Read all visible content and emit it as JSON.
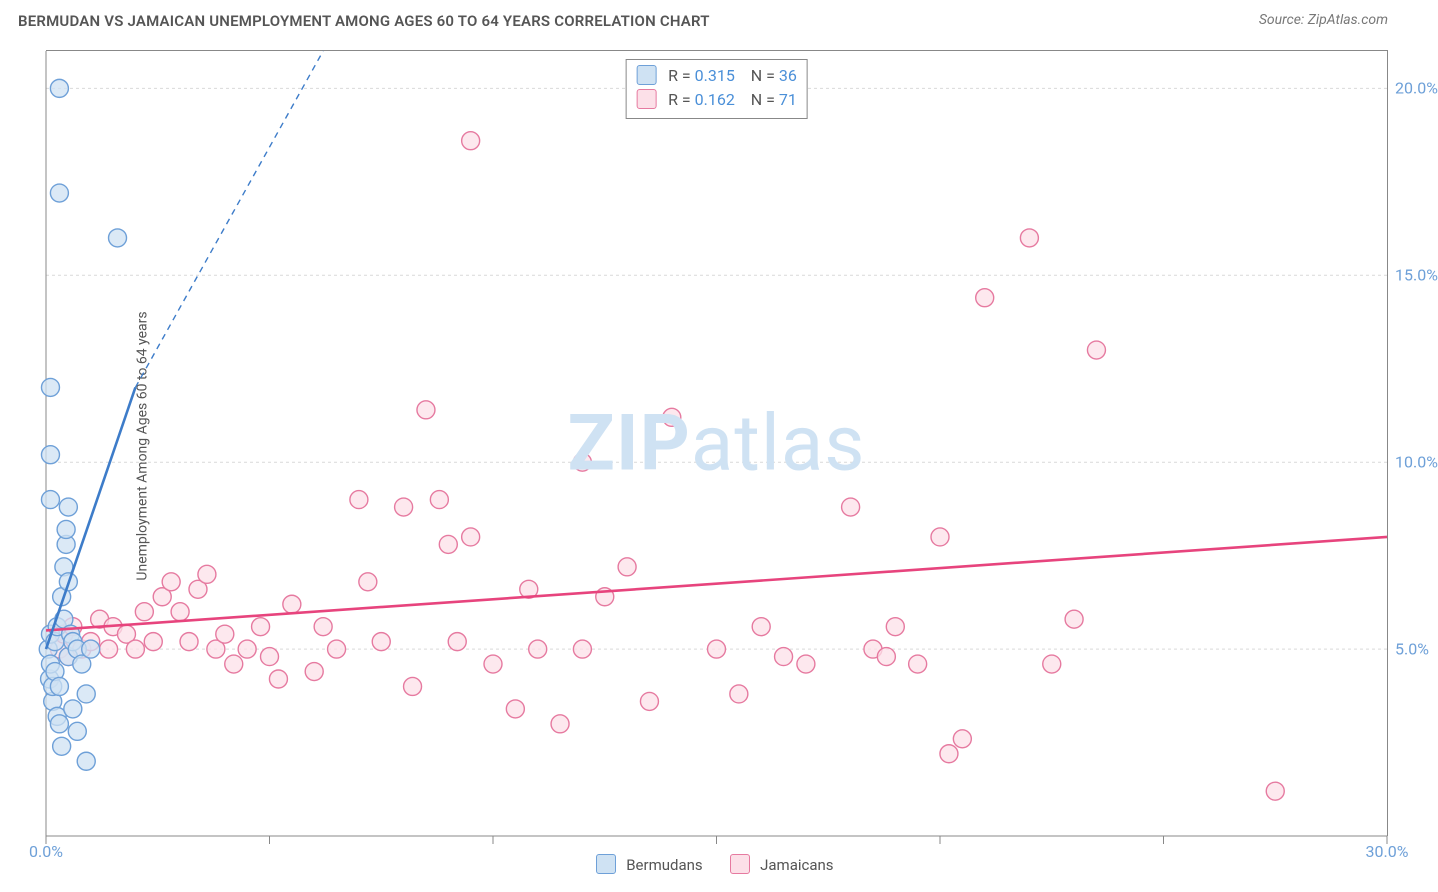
{
  "header": {
    "title": "BERMUDAN VS JAMAICAN UNEMPLOYMENT AMONG AGES 60 TO 64 YEARS CORRELATION CHART",
    "source": "Source: ZipAtlas.com"
  },
  "ylabel": "Unemployment Among Ages 60 to 64 years",
  "watermark": {
    "bold": "ZIP",
    "light": "atlas",
    "color": "#cfe2f3"
  },
  "chart": {
    "type": "scatter",
    "xlim": [
      0,
      30
    ],
    "ylim": [
      0,
      21
    ],
    "yticks": [
      {
        "v": 5,
        "label": "5.0%"
      },
      {
        "v": 10,
        "label": "10.0%"
      },
      {
        "v": 15,
        "label": "15.0%"
      },
      {
        "v": 20,
        "label": "20.0%"
      }
    ],
    "xticks": [
      {
        "v": 0,
        "label": "0.0%"
      },
      {
        "v": 5,
        "label": ""
      },
      {
        "v": 10,
        "label": ""
      },
      {
        "v": 15,
        "label": ""
      },
      {
        "v": 20,
        "label": ""
      },
      {
        "v": 25,
        "label": ""
      },
      {
        "v": 30,
        "label": "30.0%"
      }
    ],
    "grid_color": "#d9d9d9",
    "axis_color": "#888888",
    "tick_label_color": "#6ea0d8",
    "marker_radius": 9,
    "marker_stroke_width": 1.4,
    "trend_line_width": 2.6,
    "trend_dash_width": 1.4,
    "background_color": "#ffffff"
  },
  "series": {
    "bermudans": {
      "label": "Bermudans",
      "fill": "#cfe2f3",
      "stroke": "#6ea0d8",
      "line_color": "#3d7cc9",
      "R": "0.315",
      "N": "36",
      "trend": {
        "x1": 0,
        "y1": 5.0,
        "x2": 2.0,
        "y2": 12.0
      },
      "trend_ext": {
        "x1": 2.0,
        "y1": 12.0,
        "x2": 6.2,
        "y2": 21.0
      },
      "points": [
        [
          0.05,
          5.0
        ],
        [
          0.08,
          4.2
        ],
        [
          0.1,
          5.4
        ],
        [
          0.1,
          4.6
        ],
        [
          0.15,
          3.6
        ],
        [
          0.15,
          4.0
        ],
        [
          0.2,
          5.2
        ],
        [
          0.2,
          4.4
        ],
        [
          0.25,
          3.2
        ],
        [
          0.25,
          5.6
        ],
        [
          0.3,
          4.0
        ],
        [
          0.3,
          3.0
        ],
        [
          0.35,
          2.4
        ],
        [
          0.35,
          6.4
        ],
        [
          0.4,
          5.8
        ],
        [
          0.4,
          7.2
        ],
        [
          0.45,
          7.8
        ],
        [
          0.45,
          8.2
        ],
        [
          0.5,
          6.8
        ],
        [
          0.5,
          4.8
        ],
        [
          0.55,
          5.4
        ],
        [
          0.6,
          5.2
        ],
        [
          0.6,
          3.4
        ],
        [
          0.7,
          2.8
        ],
        [
          0.7,
          5.0
        ],
        [
          0.8,
          4.6
        ],
        [
          0.9,
          3.8
        ],
        [
          0.9,
          2.0
        ],
        [
          1.0,
          5.0
        ],
        [
          0.1,
          9.0
        ],
        [
          0.1,
          10.2
        ],
        [
          0.1,
          12.0
        ],
        [
          0.3,
          20.0
        ],
        [
          0.3,
          17.2
        ],
        [
          1.6,
          16.0
        ],
        [
          0.5,
          8.8
        ]
      ]
    },
    "jamaicans": {
      "label": "Jamaicans",
      "fill": "#fce0e8",
      "stroke": "#e67aa0",
      "line_color": "#e7447d",
      "R": "0.162",
      "N": "71",
      "trend": {
        "x1": 0,
        "y1": 5.5,
        "x2": 30,
        "y2": 8.0
      },
      "points": [
        [
          0.3,
          5.0
        ],
        [
          0.4,
          5.4
        ],
        [
          0.5,
          4.8
        ],
        [
          0.6,
          5.6
        ],
        [
          0.8,
          5.0
        ],
        [
          1.0,
          5.2
        ],
        [
          1.2,
          5.8
        ],
        [
          1.4,
          5.0
        ],
        [
          1.5,
          5.6
        ],
        [
          1.8,
          5.4
        ],
        [
          2.0,
          5.0
        ],
        [
          2.2,
          6.0
        ],
        [
          2.4,
          5.2
        ],
        [
          2.6,
          6.4
        ],
        [
          2.8,
          6.8
        ],
        [
          3.0,
          6.0
        ],
        [
          3.2,
          5.2
        ],
        [
          3.4,
          6.6
        ],
        [
          3.6,
          7.0
        ],
        [
          3.8,
          5.0
        ],
        [
          4.0,
          5.4
        ],
        [
          4.2,
          4.6
        ],
        [
          4.5,
          5.0
        ],
        [
          4.8,
          5.6
        ],
        [
          5.0,
          4.8
        ],
        [
          5.2,
          4.2
        ],
        [
          5.5,
          6.2
        ],
        [
          6.0,
          4.4
        ],
        [
          6.2,
          5.6
        ],
        [
          6.5,
          5.0
        ],
        [
          7.0,
          9.0
        ],
        [
          7.2,
          6.8
        ],
        [
          7.5,
          5.2
        ],
        [
          8.0,
          8.8
        ],
        [
          8.2,
          4.0
        ],
        [
          8.5,
          11.4
        ],
        [
          8.8,
          9.0
        ],
        [
          9.0,
          7.8
        ],
        [
          9.2,
          5.2
        ],
        [
          9.5,
          8.0
        ],
        [
          9.5,
          18.6
        ],
        [
          10.0,
          4.6
        ],
        [
          10.5,
          3.4
        ],
        [
          10.8,
          6.6
        ],
        [
          11.0,
          5.0
        ],
        [
          11.5,
          3.0
        ],
        [
          12.0,
          5.0
        ],
        [
          12.0,
          10.0
        ],
        [
          12.5,
          6.4
        ],
        [
          13.0,
          7.2
        ],
        [
          13.5,
          3.6
        ],
        [
          14.0,
          11.2
        ],
        [
          15.0,
          5.0
        ],
        [
          15.5,
          3.8
        ],
        [
          16.0,
          5.6
        ],
        [
          16.5,
          4.8
        ],
        [
          17.0,
          4.6
        ],
        [
          18.0,
          8.8
        ],
        [
          18.5,
          5.0
        ],
        [
          18.8,
          4.8
        ],
        [
          19.5,
          4.6
        ],
        [
          20.0,
          8.0
        ],
        [
          20.5,
          2.6
        ],
        [
          21.0,
          14.4
        ],
        [
          22.0,
          16.0
        ],
        [
          22.5,
          4.6
        ],
        [
          23.0,
          5.8
        ],
        [
          23.5,
          13.0
        ],
        [
          20.2,
          2.2
        ],
        [
          27.5,
          1.2
        ],
        [
          19.0,
          5.6
        ]
      ]
    }
  },
  "top_legend": {
    "rows": [
      {
        "series": "bermudans",
        "R_label": "R =",
        "N_label": "N ="
      },
      {
        "series": "jamaicans",
        "R_label": "R =",
        "N_label": "N ="
      }
    ]
  },
  "footer_legend": [
    {
      "series": "bermudans"
    },
    {
      "series": "jamaicans"
    }
  ]
}
